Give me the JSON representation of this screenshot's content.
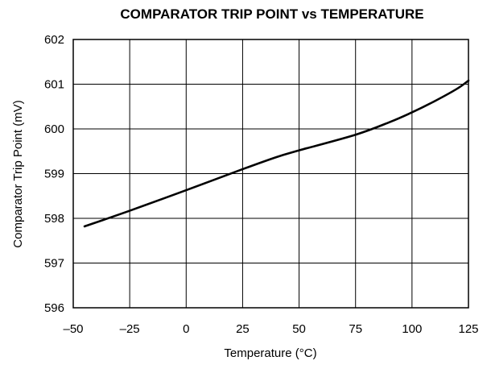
{
  "chart_data": {
    "type": "line",
    "title": "COMPARATOR TRIP POINT vs TEMPERATURE",
    "xlabel": "Temperature (°C)",
    "ylabel": "Comparator Trip Point (mV)",
    "xlim": [
      -50,
      125
    ],
    "ylim": [
      596,
      602
    ],
    "x_ticks": [
      -50,
      -25,
      0,
      25,
      50,
      75,
      100,
      125
    ],
    "x_tick_labels": [
      "–50",
      "–25",
      "0",
      "25",
      "50",
      "75",
      "100",
      "125"
    ],
    "y_ticks": [
      596,
      597,
      598,
      599,
      600,
      601,
      602
    ],
    "y_tick_labels": [
      "596",
      "597",
      "598",
      "599",
      "600",
      "601",
      "602"
    ],
    "grid": true,
    "series": [
      {
        "x": [
          -45,
          -25,
          0,
          25,
          40,
          50,
          75,
          90,
          100,
          110,
          120,
          125
        ],
        "y": [
          597.82,
          598.17,
          598.63,
          599.1,
          599.37,
          599.52,
          599.87,
          600.15,
          600.37,
          600.62,
          600.9,
          601.08
        ]
      }
    ]
  }
}
